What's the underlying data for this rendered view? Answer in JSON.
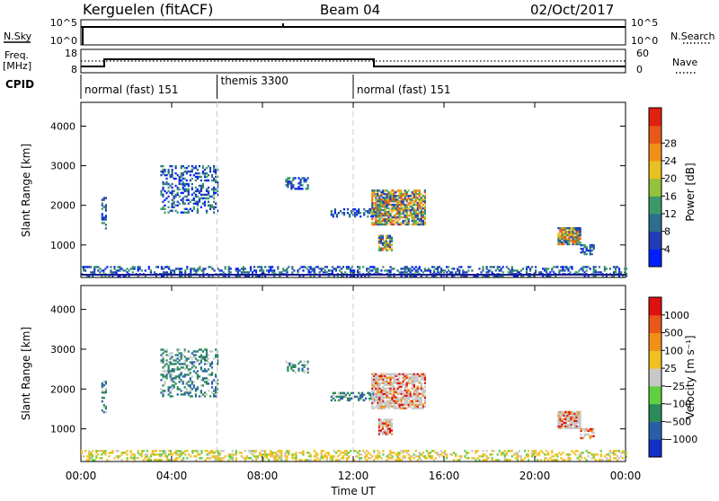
{
  "header": {
    "site": "Kerguelen (fitACF)",
    "beam": "Beam 04",
    "date": "02/Oct/2017"
  },
  "side_labels": {
    "nsky": "N.Sky",
    "nsearch": "N.Search",
    "freq": "Freq.",
    "freq_unit": "[MHz]",
    "nave": "Nave",
    "cpid": "CPID",
    "ylabel": "Slant Range [km]",
    "xlabel": "Time UT"
  },
  "noise_panel": {
    "left_ticks": [
      "10^5",
      "10^0"
    ],
    "right_ticks": [
      "10^5",
      "10^0"
    ]
  },
  "freq_panel": {
    "left_ticks": [
      "18",
      "8"
    ],
    "right_ticks": [
      "60",
      "0"
    ]
  },
  "cpid_segments": [
    {
      "label": "normal (fast) 151",
      "start_hour": 0,
      "end_hour": 6
    },
    {
      "label": "themis 3300",
      "start_hour": 6,
      "end_hour": 12
    },
    {
      "label": "normal (fast) 151",
      "start_hour": 12,
      "end_hour": 24
    }
  ],
  "chart_data": [
    {
      "type": "heatmap",
      "name": "power-panel",
      "x_range_hours": [
        0,
        24
      ],
      "x_ticks": [
        "00:00",
        "04:00",
        "08:00",
        "12:00",
        "16:00",
        "20:00",
        "00:00"
      ],
      "x_tick_hours": [
        0,
        4,
        8,
        12,
        16,
        20,
        24
      ],
      "ylim": [
        180,
        4600
      ],
      "y_ticks": [
        1000,
        2000,
        3000,
        4000
      ],
      "ylabel": "Slant Range [km]",
      "colorbar": {
        "label": "Power [dB]",
        "ticks": [
          "4",
          "8",
          "12",
          "16",
          "20",
          "24",
          "28"
        ],
        "colors": [
          "#0020ff",
          "#203cb8",
          "#2d6e8c",
          "#3c9a6a",
          "#94c23a",
          "#e8c020",
          "#f09018",
          "#e85818",
          "#e02010"
        ]
      },
      "echo_regions": [
        {
          "t0": 0.0,
          "t1": 24.0,
          "r0": 200,
          "r1": 450,
          "density": 0.4
        },
        {
          "t0": 0.9,
          "t1": 1.1,
          "r0": 1400,
          "r1": 2200,
          "density": 0.5
        },
        {
          "t0": 3.5,
          "t1": 6.0,
          "r0": 1800,
          "r1": 3000,
          "density": 0.35
        },
        {
          "t0": 9.0,
          "t1": 10.0,
          "r0": 2400,
          "r1": 2700,
          "density": 0.4
        },
        {
          "t0": 11.0,
          "t1": 13.2,
          "r0": 1700,
          "r1": 1900,
          "density": 0.5
        },
        {
          "t0": 12.8,
          "t1": 15.2,
          "r0": 1500,
          "r1": 2400,
          "density": 0.75
        },
        {
          "t0": 13.1,
          "t1": 13.7,
          "r0": 850,
          "r1": 1250,
          "density": 0.85
        },
        {
          "t0": 21.0,
          "t1": 22.0,
          "r0": 1000,
          "r1": 1450,
          "density": 0.85
        },
        {
          "t0": 22.0,
          "t1": 22.6,
          "r0": 750,
          "r1": 1000,
          "density": 0.6
        }
      ]
    },
    {
      "type": "heatmap",
      "name": "velocity-panel",
      "x_range_hours": [
        0,
        24
      ],
      "x_ticks": [
        "00:00",
        "04:00",
        "08:00",
        "12:00",
        "16:00",
        "20:00",
        "00:00"
      ],
      "x_tick_hours": [
        0,
        4,
        8,
        12,
        16,
        20,
        24
      ],
      "ylim": [
        180,
        4600
      ],
      "y_ticks": [
        1000,
        2000,
        3000,
        4000
      ],
      "ylabel": "Slant Range [km]",
      "colorbar": {
        "label": "Velocity [m s⁻¹]",
        "ticks": [
          "1000",
          "500",
          "100",
          "25",
          "−25",
          "−100",
          "−500",
          "−1000"
        ],
        "colors": [
          "#1030c8",
          "#2860a8",
          "#2a8a5c",
          "#60d040",
          "#c8c8c8",
          "#f0c020",
          "#f09018",
          "#e85818",
          "#e01010"
        ]
      },
      "echo_regions": [
        {
          "t0": 0.0,
          "t1": 24.0,
          "r0": 200,
          "r1": 450,
          "density": 0.4
        },
        {
          "t0": 0.9,
          "t1": 1.1,
          "r0": 1400,
          "r1": 2200,
          "density": 0.5
        },
        {
          "t0": 3.5,
          "t1": 6.0,
          "r0": 1800,
          "r1": 3000,
          "density": 0.35
        },
        {
          "t0": 9.0,
          "t1": 10.0,
          "r0": 2400,
          "r1": 2700,
          "density": 0.4
        },
        {
          "t0": 11.0,
          "t1": 13.2,
          "r0": 1700,
          "r1": 1900,
          "density": 0.5
        },
        {
          "t0": 12.8,
          "t1": 15.2,
          "r0": 1500,
          "r1": 2400,
          "density": 0.75
        },
        {
          "t0": 13.1,
          "t1": 13.7,
          "r0": 850,
          "r1": 1250,
          "density": 0.85
        },
        {
          "t0": 21.0,
          "t1": 22.0,
          "r0": 1000,
          "r1": 1450,
          "density": 0.85
        },
        {
          "t0": 22.0,
          "t1": 22.6,
          "r0": 750,
          "r1": 1000,
          "density": 0.6
        }
      ]
    }
  ]
}
